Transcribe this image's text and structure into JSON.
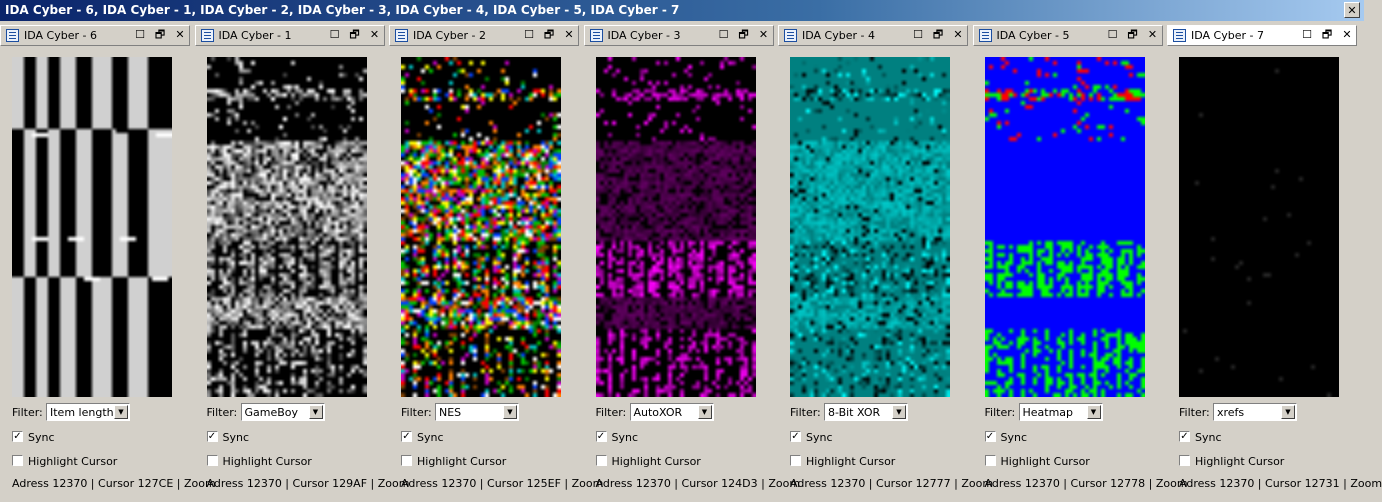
{
  "window": {
    "title": "IDA Cyber - 6, IDA Cyber - 1, IDA Cyber - 2, IDA Cyber - 3, IDA Cyber - 4, IDA Cyber - 5, IDA Cyber - 7",
    "close_glyph": "✕"
  },
  "tab_buttons": {
    "minimize": "☐",
    "restore": "🗗",
    "close": "✕"
  },
  "labels": {
    "filter": "Filter:",
    "sync": "Sync",
    "highlight": "Highlight Cursor"
  },
  "panels": [
    {
      "tab": "IDA Cyber - 6",
      "filter": "Item length",
      "status": "Adress 12370 | Cursor 127CE | Zoom",
      "sync": true,
      "highlight": false,
      "palette": "stripes",
      "active": false
    },
    {
      "tab": "IDA Cyber - 1",
      "filter": "GameBoy",
      "status": "Adress 12370 | Cursor 129AF | Zoom",
      "sync": true,
      "highlight": false,
      "palette": "gray",
      "active": false
    },
    {
      "tab": "IDA Cyber - 2",
      "filter": "NES",
      "status": "Adress 12370 | Cursor 125EF | Zoom",
      "sync": true,
      "highlight": false,
      "palette": "nes",
      "active": false
    },
    {
      "tab": "IDA Cyber - 3",
      "filter": "AutoXOR",
      "status": "Adress 12370 | Cursor 124D3 | Zoom",
      "sync": true,
      "highlight": false,
      "palette": "magenta",
      "active": false
    },
    {
      "tab": "IDA Cyber - 4",
      "filter": "8-Bit XOR",
      "status": "Adress 12370 | Cursor 12777 | Zoom",
      "sync": true,
      "highlight": false,
      "palette": "cyan",
      "active": false
    },
    {
      "tab": "IDA Cyber - 5",
      "filter": "Heatmap",
      "status": "Adress 12370 | Cursor 12778 | Zoom",
      "sync": true,
      "highlight": false,
      "palette": "heat",
      "active": false
    },
    {
      "tab": "IDA Cyber - 7",
      "filter": "xrefs",
      "status": "Adress 12370 | Cursor 12731 | Zoom",
      "sync": true,
      "highlight": false,
      "palette": "xrefs",
      "active": true
    }
  ],
  "colors": {
    "window_bg": "#d4d0c8",
    "title_start": "#0a246a",
    "title_end": "#a6caf0",
    "heat_bg": "#0000ff",
    "heat_hot": "#ff0000",
    "heat_mid": "#00ff00",
    "magenta": "#ff00ff",
    "cyan": "#00c8c8"
  }
}
